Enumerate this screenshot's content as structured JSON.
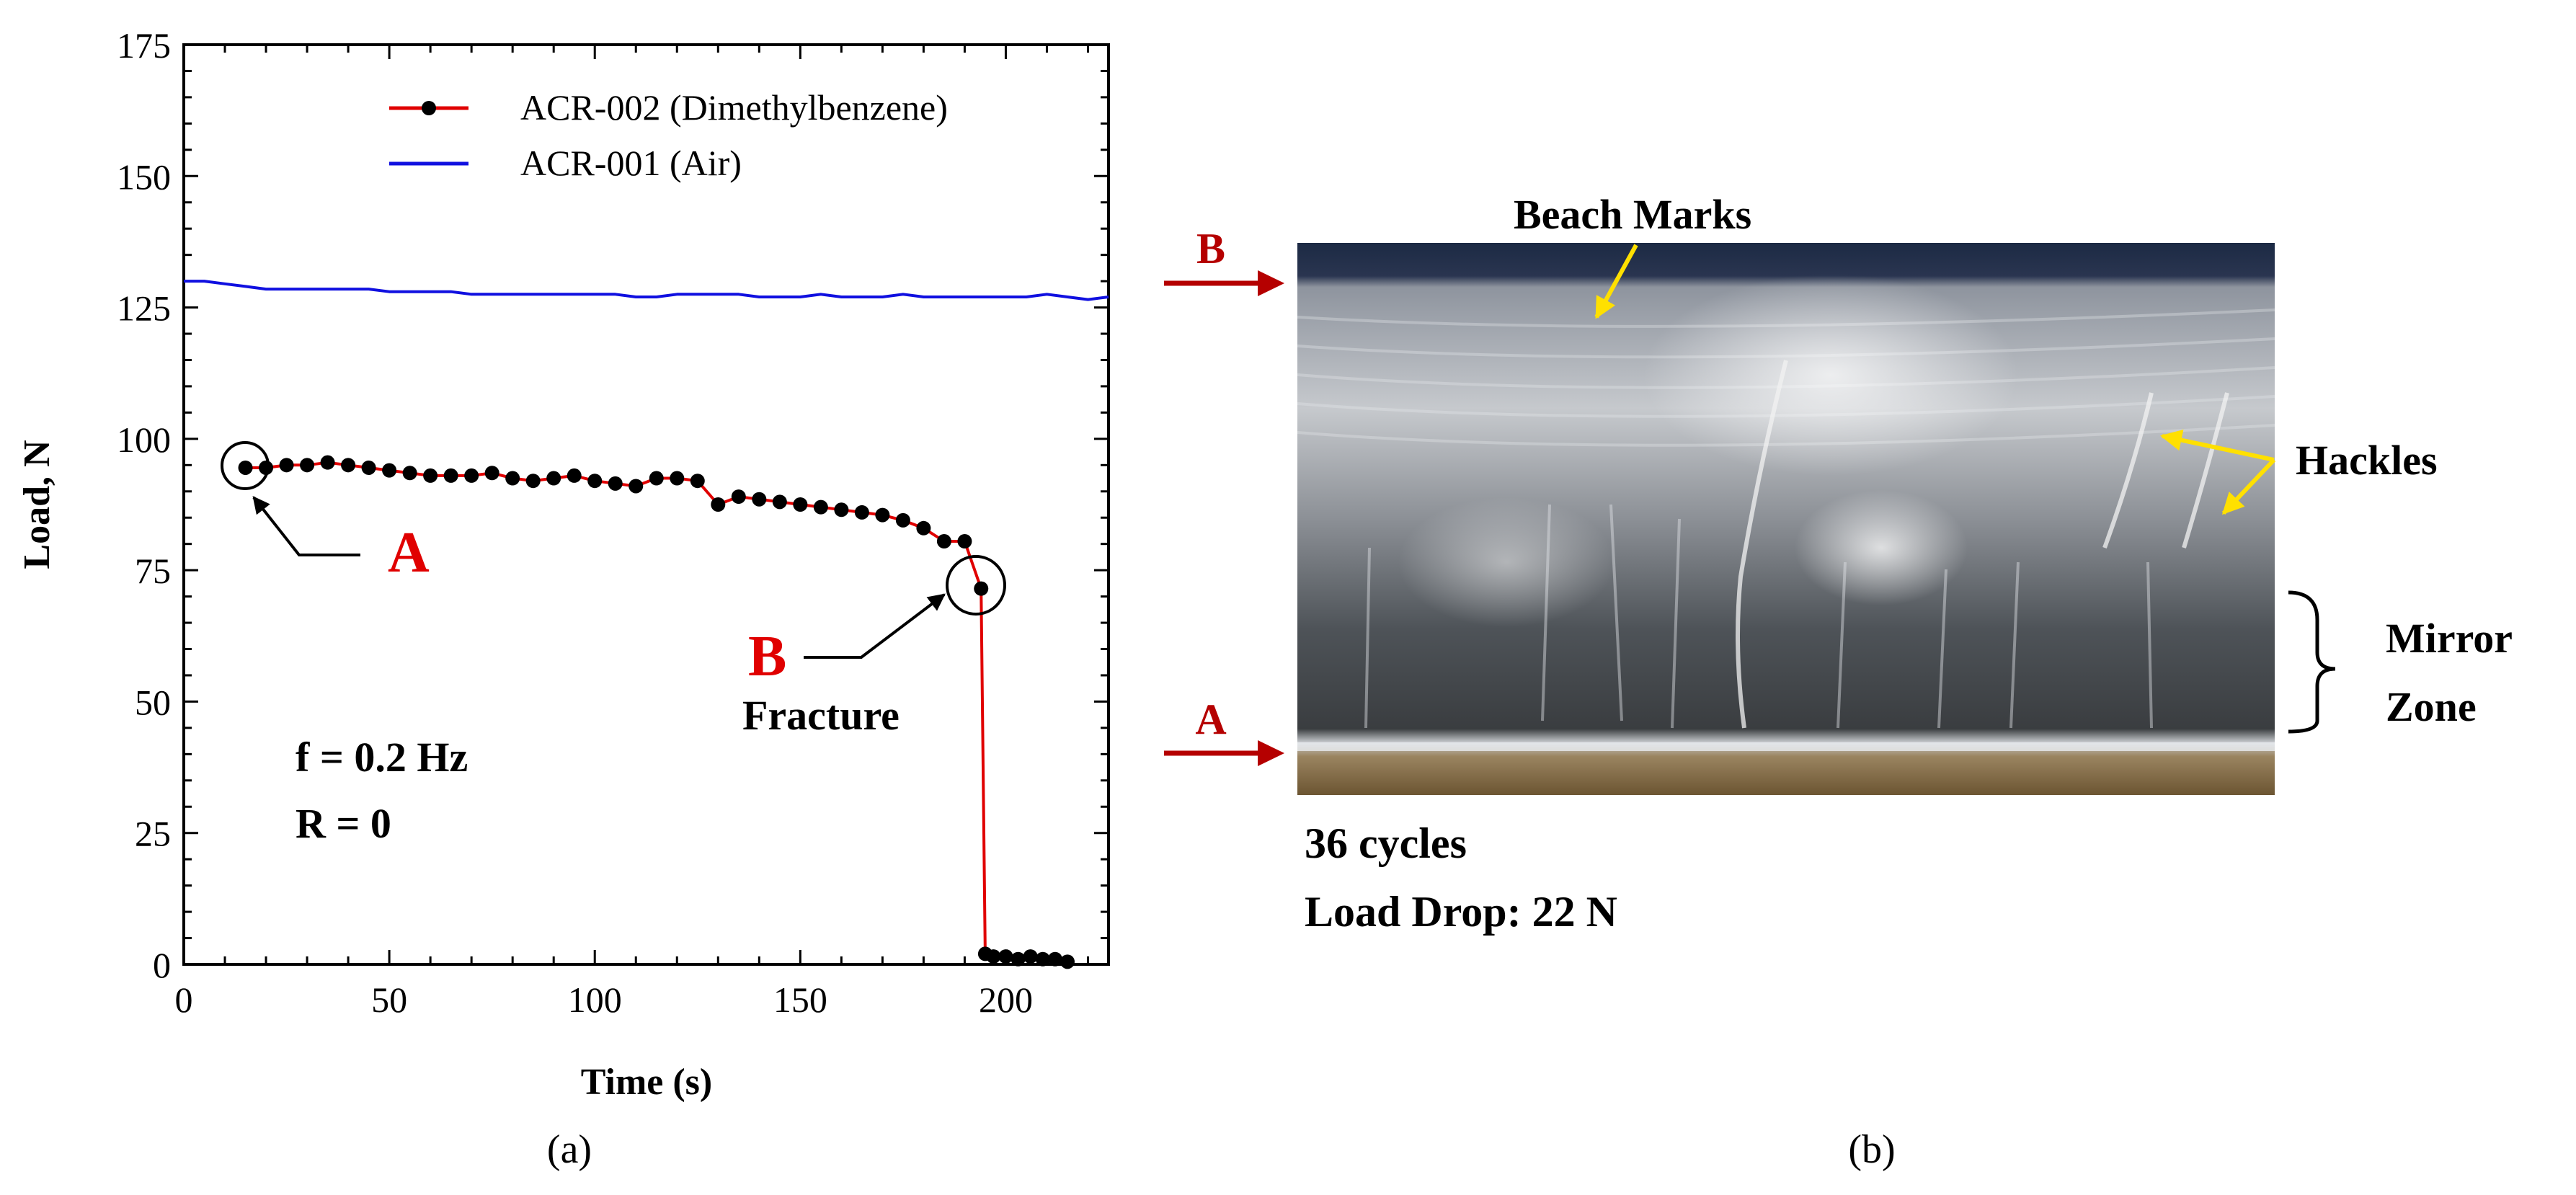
{
  "panel_a": {
    "caption": "(a)"
  },
  "panel_b": {
    "caption": "(b)",
    "labels": {
      "beach_marks": "Beach Marks",
      "hackles": "Hackles",
      "mirror_zone_line1": "Mirror",
      "mirror_zone_line2": "Zone",
      "edge_top": "B",
      "edge_bottom": "A"
    },
    "info_line1": "36 cycles",
    "info_line2": "Load Drop: 22 N",
    "colors": {
      "arrow_red": "#b50000",
      "annotation_yellow": "#ffe000"
    }
  },
  "chart_data": {
    "type": "line",
    "title": "",
    "xlabel": "Time (s)",
    "ylabel": "Load, N",
    "xlim": [
      0,
      225
    ],
    "ylim": [
      0,
      175
    ],
    "xticks": [
      0,
      50,
      100,
      150,
      200
    ],
    "yticks": [
      0,
      25,
      50,
      75,
      100,
      125,
      150,
      175
    ],
    "legend_position": "top-right",
    "series": [
      {
        "name": "ACR-002 (Dimethylbenzene)",
        "color": "#e00000",
        "marker": "circle",
        "x": [
          15,
          20,
          25,
          30,
          35,
          40,
          45,
          50,
          55,
          60,
          65,
          70,
          75,
          80,
          85,
          90,
          95,
          100,
          105,
          110,
          115,
          120,
          125,
          130,
          135,
          140,
          145,
          150,
          155,
          160,
          165,
          170,
          175,
          180,
          185,
          190,
          194,
          195,
          197,
          200,
          203,
          206,
          209,
          212,
          215
        ],
        "y": [
          94.5,
          94.5,
          95,
          95,
          95.5,
          95,
          94.5,
          94,
          93.5,
          93,
          93,
          93,
          93.5,
          92.5,
          92,
          92.5,
          93,
          92,
          91.5,
          91,
          92.5,
          92.5,
          92,
          87.5,
          89,
          88.5,
          88,
          87.5,
          87,
          86.5,
          86,
          85.5,
          84.5,
          83,
          80.5,
          80.5,
          71.5,
          2,
          1.5,
          1.5,
          1,
          1.5,
          1,
          1,
          0.5
        ]
      },
      {
        "name": "ACR-001 (Air)",
        "color": "#1010e0",
        "marker": "none",
        "x": [
          0,
          5,
          10,
          15,
          20,
          25,
          30,
          35,
          40,
          45,
          50,
          55,
          60,
          65,
          70,
          75,
          80,
          85,
          90,
          95,
          100,
          105,
          110,
          115,
          120,
          125,
          130,
          135,
          140,
          145,
          150,
          155,
          160,
          165,
          170,
          175,
          180,
          185,
          190,
          195,
          200,
          205,
          210,
          215,
          220,
          225
        ],
        "y": [
          130,
          130,
          129.5,
          129,
          128.5,
          128.5,
          128.5,
          128.5,
          128.5,
          128.5,
          128,
          128,
          128,
          128,
          127.5,
          127.5,
          127.5,
          127.5,
          127.5,
          127.5,
          127.5,
          127.5,
          127,
          127,
          127.5,
          127.5,
          127.5,
          127.5,
          127,
          127,
          127,
          127.5,
          127,
          127,
          127,
          127.5,
          127,
          127,
          127,
          127,
          127,
          127,
          127.5,
          127,
          126.5,
          127
        ]
      }
    ],
    "annotations": [
      {
        "text": "A",
        "x": 15,
        "y": 94.5,
        "color": "#e00000"
      },
      {
        "text": "B",
        "x": 194,
        "y": 71.5,
        "color": "#e00000"
      },
      {
        "text": "Fracture",
        "x": 194,
        "y": 71.5,
        "color": "#000000"
      },
      {
        "text": "f = 0.2 Hz",
        "color": "#000000"
      },
      {
        "text": "R = 0",
        "color": "#000000"
      }
    ]
  }
}
